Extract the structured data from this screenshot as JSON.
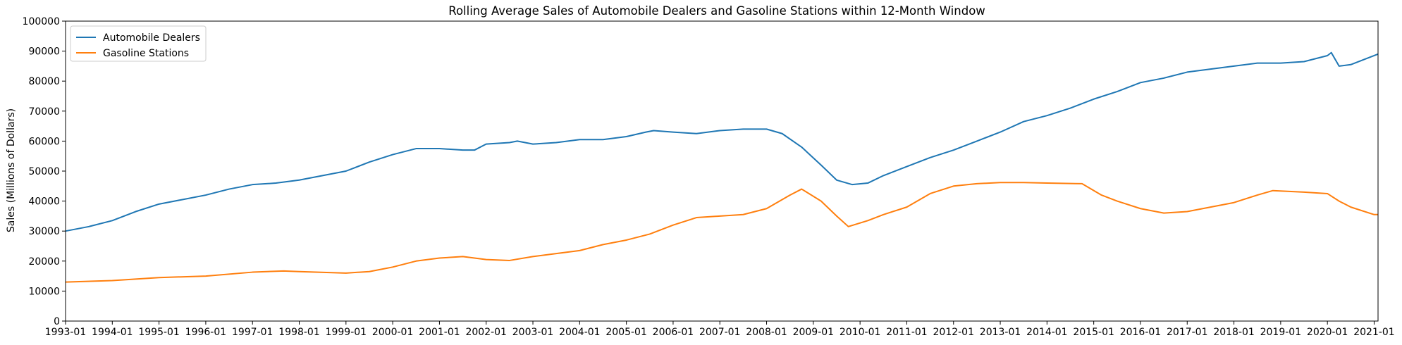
{
  "chart_data": {
    "type": "line",
    "title": "Rolling Average Sales of Automobile Dealers and Gasoline Stations within 12-Month Window",
    "xlabel": "",
    "ylabel": "Sales (Millions of Dollars)",
    "xlim": [
      "1993-01",
      "2021-02"
    ],
    "ylim": [
      0,
      100000
    ],
    "yticks": [
      0,
      10000,
      20000,
      30000,
      40000,
      50000,
      60000,
      70000,
      80000,
      90000,
      100000
    ],
    "xticks": [
      "1993-01",
      "1994-01",
      "1995-01",
      "1996-01",
      "1997-01",
      "1998-01",
      "1999-01",
      "2000-01",
      "2001-01",
      "2002-01",
      "2003-01",
      "2004-01",
      "2005-01",
      "2006-01",
      "2007-01",
      "2008-01",
      "2009-01",
      "2010-01",
      "2011-01",
      "2012-01",
      "2013-01",
      "2014-01",
      "2015-01",
      "2016-01",
      "2017-01",
      "2018-01",
      "2019-01",
      "2020-01",
      "2021-01"
    ],
    "grid": false,
    "legend_position": "top-left",
    "series": [
      {
        "name": "Automobile Dealers",
        "color": "#1f77b4",
        "points": [
          [
            "1993-01",
            30000
          ],
          [
            "1993-07",
            31500
          ],
          [
            "1994-01",
            33500
          ],
          [
            "1994-07",
            36500
          ],
          [
            "1995-01",
            39000
          ],
          [
            "1995-07",
            40500
          ],
          [
            "1996-01",
            42000
          ],
          [
            "1996-07",
            44000
          ],
          [
            "1997-01",
            45500
          ],
          [
            "1997-07",
            46000
          ],
          [
            "1998-01",
            47000
          ],
          [
            "1998-07",
            48500
          ],
          [
            "1999-01",
            50000
          ],
          [
            "1999-07",
            53000
          ],
          [
            "2000-01",
            55500
          ],
          [
            "2000-07",
            57500
          ],
          [
            "2001-01",
            57500
          ],
          [
            "2001-07",
            57000
          ],
          [
            "2001-10",
            57000
          ],
          [
            "2002-01",
            59000
          ],
          [
            "2002-07",
            59500
          ],
          [
            "2002-09",
            60000
          ],
          [
            "2003-01",
            59000
          ],
          [
            "2003-07",
            59500
          ],
          [
            "2004-01",
            60500
          ],
          [
            "2004-07",
            60500
          ],
          [
            "2005-01",
            61500
          ],
          [
            "2005-06",
            63000
          ],
          [
            "2005-08",
            63500
          ],
          [
            "2006-01",
            63000
          ],
          [
            "2006-07",
            62500
          ],
          [
            "2007-01",
            63500
          ],
          [
            "2007-07",
            64000
          ],
          [
            "2008-01",
            64000
          ],
          [
            "2008-05",
            62500
          ],
          [
            "2008-10",
            58000
          ],
          [
            "2009-03",
            52000
          ],
          [
            "2009-07",
            47000
          ],
          [
            "2009-11",
            45500
          ],
          [
            "2010-03",
            46000
          ],
          [
            "2010-07",
            48500
          ],
          [
            "2011-01",
            51500
          ],
          [
            "2011-07",
            54500
          ],
          [
            "2012-01",
            57000
          ],
          [
            "2012-07",
            60000
          ],
          [
            "2013-01",
            63000
          ],
          [
            "2013-07",
            66500
          ],
          [
            "2014-01",
            68500
          ],
          [
            "2014-07",
            71000
          ],
          [
            "2015-01",
            74000
          ],
          [
            "2015-07",
            76500
          ],
          [
            "2016-01",
            79500
          ],
          [
            "2016-07",
            81000
          ],
          [
            "2017-01",
            83000
          ],
          [
            "2017-07",
            84000
          ],
          [
            "2018-01",
            85000
          ],
          [
            "2018-07",
            86000
          ],
          [
            "2019-01",
            86000
          ],
          [
            "2019-07",
            86500
          ],
          [
            "2020-01",
            88500
          ],
          [
            "2020-02",
            89500
          ],
          [
            "2020-04",
            85000
          ],
          [
            "2020-07",
            85500
          ],
          [
            "2021-01",
            88500
          ],
          [
            "2021-02",
            89000
          ]
        ]
      },
      {
        "name": "Gasoline Stations",
        "color": "#ff7f0e",
        "points": [
          [
            "1993-01",
            13000
          ],
          [
            "1994-01",
            13500
          ],
          [
            "1995-01",
            14500
          ],
          [
            "1996-01",
            15000
          ],
          [
            "1997-01",
            16300
          ],
          [
            "1997-09",
            16700
          ],
          [
            "1998-01",
            16500
          ],
          [
            "1999-01",
            16000
          ],
          [
            "1999-07",
            16500
          ],
          [
            "2000-01",
            18000
          ],
          [
            "2000-07",
            20000
          ],
          [
            "2001-01",
            21000
          ],
          [
            "2001-07",
            21500
          ],
          [
            "2002-01",
            20500
          ],
          [
            "2002-07",
            20200
          ],
          [
            "2003-01",
            21500
          ],
          [
            "2003-07",
            22500
          ],
          [
            "2004-01",
            23500
          ],
          [
            "2004-07",
            25500
          ],
          [
            "2005-01",
            27000
          ],
          [
            "2005-07",
            29000
          ],
          [
            "2006-01",
            32000
          ],
          [
            "2006-07",
            34500
          ],
          [
            "2007-01",
            35000
          ],
          [
            "2007-07",
            35500
          ],
          [
            "2008-01",
            37500
          ],
          [
            "2008-07",
            42000
          ],
          [
            "2008-10",
            44000
          ],
          [
            "2009-03",
            40000
          ],
          [
            "2009-07",
            35000
          ],
          [
            "2009-10",
            31500
          ],
          [
            "2010-03",
            33500
          ],
          [
            "2010-07",
            35500
          ],
          [
            "2011-01",
            38000
          ],
          [
            "2011-07",
            42500
          ],
          [
            "2012-01",
            45000
          ],
          [
            "2012-07",
            45800
          ],
          [
            "2013-01",
            46200
          ],
          [
            "2013-07",
            46200
          ],
          [
            "2014-01",
            46000
          ],
          [
            "2014-10",
            45800
          ],
          [
            "2015-03",
            42000
          ],
          [
            "2015-07",
            40000
          ],
          [
            "2016-01",
            37500
          ],
          [
            "2016-07",
            36000
          ],
          [
            "2017-01",
            36500
          ],
          [
            "2017-07",
            38000
          ],
          [
            "2018-01",
            39500
          ],
          [
            "2018-07",
            42000
          ],
          [
            "2018-11",
            43500
          ],
          [
            "2019-07",
            43000
          ],
          [
            "2020-01",
            42500
          ],
          [
            "2020-04",
            40000
          ],
          [
            "2020-07",
            38000
          ],
          [
            "2021-01",
            35500
          ],
          [
            "2021-02",
            35500
          ]
        ]
      }
    ]
  }
}
